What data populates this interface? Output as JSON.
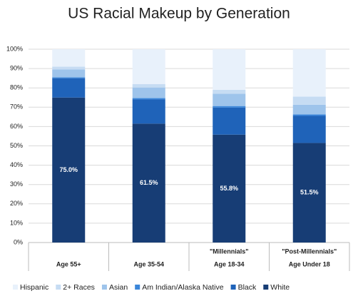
{
  "chart_data": {
    "type": "stacked_bar",
    "title": "US Racial Makeup by Generation",
    "categories": [
      "Age 55+",
      "Age 35-54",
      "Age 18-34",
      "Age Under 18"
    ],
    "category_notes": [
      null,
      null,
      "\"Millennials\"",
      "\"Post-Millennials\""
    ],
    "series": [
      {
        "name": "White",
        "color": "#173d75",
        "values": [
          75.0,
          61.5,
          55.8,
          51.5
        ],
        "value_labels": [
          "75.0%",
          "61.5%",
          "55.8%",
          "51.5%"
        ]
      },
      {
        "name": "Black",
        "color": "#1f63b9",
        "values": [
          10.0,
          12.5,
          14.0,
          14.0
        ]
      },
      {
        "name": "Am Indian/Alaska Native",
        "color": "#3b86d9",
        "values": [
          0.5,
          0.7,
          0.8,
          0.8
        ]
      },
      {
        "name": "Asian",
        "color": "#9ec4eb",
        "values": [
          4.0,
          5.5,
          6.4,
          5.0
        ]
      },
      {
        "name": "2+ Races",
        "color": "#c6dcf3",
        "values": [
          1.5,
          1.8,
          2.0,
          4.2
        ]
      },
      {
        "name": "Hispanic",
        "color": "#e8f1fb",
        "values": [
          9.0,
          18.0,
          21.0,
          24.5
        ]
      }
    ],
    "ylim": [
      0,
      100
    ],
    "yticks": [
      {
        "value": 0,
        "label": "0%"
      },
      {
        "value": 10,
        "label": "10%"
      },
      {
        "value": 20,
        "label": "20%"
      },
      {
        "value": 30,
        "label": "30%"
      },
      {
        "value": 40,
        "label": "40%"
      },
      {
        "value": 50,
        "label": "50%"
      },
      {
        "value": 60,
        "label": "60%"
      },
      {
        "value": 70,
        "label": "70%"
      },
      {
        "value": 80,
        "label": "80%"
      },
      {
        "value": 90,
        "label": "90%"
      },
      {
        "value": 100,
        "label": "100%"
      }
    ],
    "grid": true
  }
}
